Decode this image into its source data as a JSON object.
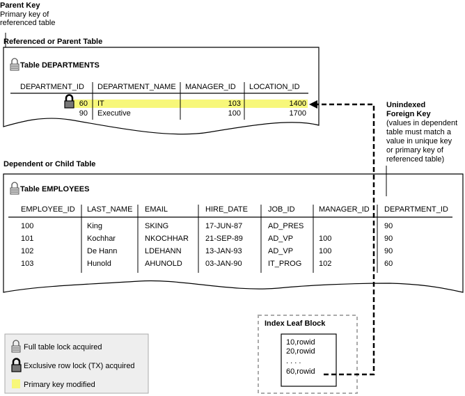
{
  "parent_key": {
    "title": "Parent Key",
    "desc": [
      "Primary key of",
      "referenced table"
    ]
  },
  "parent_table": {
    "label": "Referenced or Parent Table",
    "title": "Table DEPARTMENTS",
    "columns": [
      "DEPARTMENT_ID",
      "DEPARTMENT_NAME",
      "MANAGER_ID",
      "LOCATION_ID"
    ],
    "rows": [
      [
        "60",
        "IT",
        "103",
        "1400"
      ],
      [
        "90",
        "Executive",
        "100",
        "1700"
      ]
    ]
  },
  "foreign_key": {
    "title": [
      "Unindexed",
      "Foreign Key"
    ],
    "desc": [
      "(values in dependent",
      "table must match a",
      "value in unique key",
      "or primary key of",
      "referenced table)"
    ]
  },
  "child_table": {
    "label": "Dependent or Child Table",
    "title": "Table EMPLOYEES",
    "columns": [
      "EMPLOYEE_ID",
      "LAST_NAME",
      "EMAIL",
      "HIRE_DATE",
      "JOB_ID",
      "MANAGER_ID",
      "DEPARTMENT_ID"
    ],
    "rows": [
      [
        "100",
        "King",
        "SKING",
        "17-JUN-87",
        "AD_PRES",
        "",
        "90"
      ],
      [
        "101",
        "Kochhar",
        "NKOCHHAR",
        "21-SEP-89",
        "AD_VP",
        "100",
        "90"
      ],
      [
        "102",
        "De Hann",
        "LDEHANN",
        "13-JAN-93",
        "AD_VP",
        "100",
        "90"
      ],
      [
        "103",
        "Hunold",
        "AHUNOLD",
        "03-JAN-90",
        "IT_PROG",
        "102",
        "60"
      ]
    ]
  },
  "index": {
    "title": "Index Leaf Block",
    "entries": [
      "10,rowid",
      "20,rowid",
      ". . . .",
      "60,rowid"
    ]
  },
  "legend": {
    "items": [
      {
        "icon": "full-table-lock-icon",
        "label": "Full table lock acquired"
      },
      {
        "icon": "exclusive-row-lock-icon",
        "label": "Exclusive row lock (TX) acquired"
      },
      {
        "icon": "highlight-swatch",
        "label": "Primary key modified"
      }
    ]
  },
  "colors": {
    "highlight": "#f7f77a",
    "legend_bg": "#eeeeee",
    "index_border": "#aaaaaa"
  }
}
